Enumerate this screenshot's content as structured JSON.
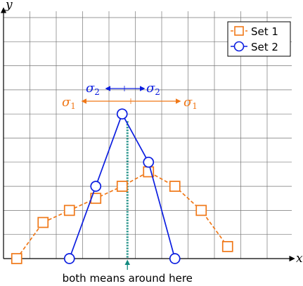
{
  "chart_data": {
    "type": "line",
    "xlabel": "x",
    "ylabel": "y",
    "xlim": [
      0,
      11
    ],
    "ylim": [
      0,
      10.8
    ],
    "grid": true,
    "legend_position": "top-right",
    "series": [
      {
        "name": "Set 1",
        "color": "#f07818",
        "line_style": "dashed",
        "marker": "square",
        "x": [
          0.5,
          1.5,
          2.5,
          3.5,
          4.5,
          5.5,
          6.5,
          7.5,
          8.5
        ],
        "y": [
          0,
          1.5,
          2.0,
          2.5,
          3.0,
          3.6,
          3.0,
          2.0,
          0.5
        ]
      },
      {
        "name": "Set 2",
        "color": "#0c1ee0",
        "line_style": "solid",
        "marker": "circle",
        "x": [
          2.5,
          3.5,
          4.5,
          5.5,
          6.5
        ],
        "y": [
          0,
          3.0,
          6.0,
          4.0,
          0
        ]
      }
    ],
    "annotations": {
      "mean_label": "both means around here",
      "mean_x": 4.7,
      "sigma1_label": "σ",
      "sigma1_subscript": "1",
      "sigma2_label": "σ",
      "sigma2_subscript": "2"
    }
  }
}
